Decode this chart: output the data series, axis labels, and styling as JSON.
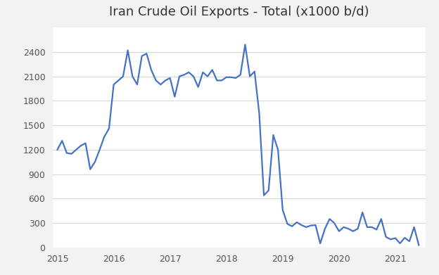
{
  "title": "Iran Crude Oil Exports - Total (x1000 b/d)",
  "title_fontsize": 13,
  "line_color": "#4472C4",
  "line_width": 1.6,
  "background_color": "#F2F2F2",
  "plot_background": "#FFFFFF",
  "grid_color": "#D9D9D9",
  "ylim": [
    0,
    2700
  ],
  "yticks": [
    0,
    300,
    600,
    900,
    1200,
    1500,
    1800,
    2100,
    2400
  ],
  "x_labels": [
    "2015",
    "2016",
    "2017",
    "2018",
    "2019",
    "2020",
    "2021"
  ],
  "year_positions": [
    0,
    12,
    24,
    36,
    48,
    60,
    72
  ],
  "values": [
    1200,
    1310,
    1160,
    1150,
    1200,
    1250,
    1280,
    960,
    1050,
    1200,
    1360,
    1460,
    2000,
    2050,
    2100,
    2420,
    2100,
    2000,
    2350,
    2380,
    2180,
    2050,
    2000,
    2050,
    2080,
    1850,
    2100,
    2120,
    2150,
    2100,
    1970,
    2150,
    2100,
    2180,
    2050,
    2050,
    2090,
    2090,
    2080,
    2120,
    2490,
    2100,
    2160,
    1650,
    640,
    700,
    1380,
    1200,
    460,
    290,
    260,
    310,
    275,
    250,
    270,
    275,
    50,
    230,
    350,
    300,
    200,
    250,
    230,
    200,
    230,
    430,
    250,
    250,
    220,
    350,
    130,
    100,
    115,
    50,
    120,
    75,
    250,
    30
  ]
}
